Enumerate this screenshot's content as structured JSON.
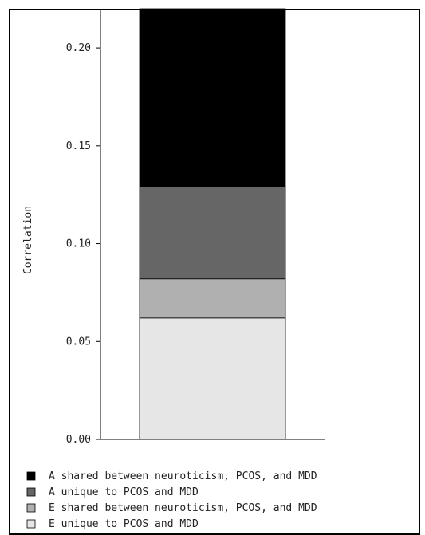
{
  "chart_data": {
    "type": "bar",
    "stacked": true,
    "ylabel": "Correlation",
    "ylim": [
      0,
      0.22
    ],
    "yticks": [
      0.0,
      0.05,
      0.1,
      0.15,
      0.2
    ],
    "ytick_labels": [
      "0.00",
      "0.05",
      "0.10",
      "0.15",
      "0.20"
    ],
    "grid": false,
    "legend_position": "bottom",
    "series": [
      {
        "name": "E unique to PCOS and MDD",
        "value": 0.062,
        "color": "#e6e6e6"
      },
      {
        "name": "E shared between neuroticism, PCOS, and MDD",
        "value": 0.02,
        "color": "#b0b0b0"
      },
      {
        "name": "A unique to PCOS and MDD",
        "value": 0.047,
        "color": "#666666"
      },
      {
        "name": "A shared between neuroticism, PCOS, and MDD",
        "value": 0.091,
        "color": "#000000"
      }
    ],
    "legend_order": [
      "A shared between neuroticism, PCOS, and MDD",
      "A unique to PCOS and MDD",
      "E shared between neuroticism, PCOS, and MDD",
      "E unique to PCOS and MDD"
    ]
  }
}
